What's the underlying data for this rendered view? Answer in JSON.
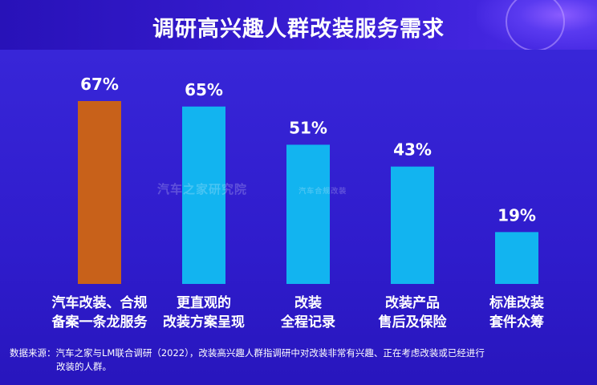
{
  "title": "调研高兴趣人群改装服务需求",
  "watermark": {
    "brand1": "汽车之家研究院",
    "brand2": "汽车合规改装"
  },
  "footer": {
    "line1": "数据来源：汽车之家与LM联合调研（2022），改装高兴趣人群指调研中对改装非常有兴趣、正在考虑改装或已经进行",
    "line2": "改装的人群。"
  },
  "colors": {
    "highlight": "#c8611a",
    "bar": "#12b4f0"
  },
  "chart_data": {
    "type": "bar",
    "categories": [
      [
        "汽车改装、合规",
        "备案一条龙服务"
      ],
      [
        "更直观的",
        "改装方案呈现"
      ],
      [
        "改装",
        "全程记录"
      ],
      [
        "改装产品",
        "售后及保险"
      ],
      [
        "标准改装",
        "套件众筹"
      ]
    ],
    "values": [
      67,
      65,
      51,
      43,
      19
    ],
    "value_labels": [
      "67%",
      "65%",
      "51%",
      "43%",
      "19%"
    ],
    "highlight_index": 0,
    "ylim": [
      0,
      100
    ],
    "title": "调研高兴趣人群改装服务需求"
  }
}
